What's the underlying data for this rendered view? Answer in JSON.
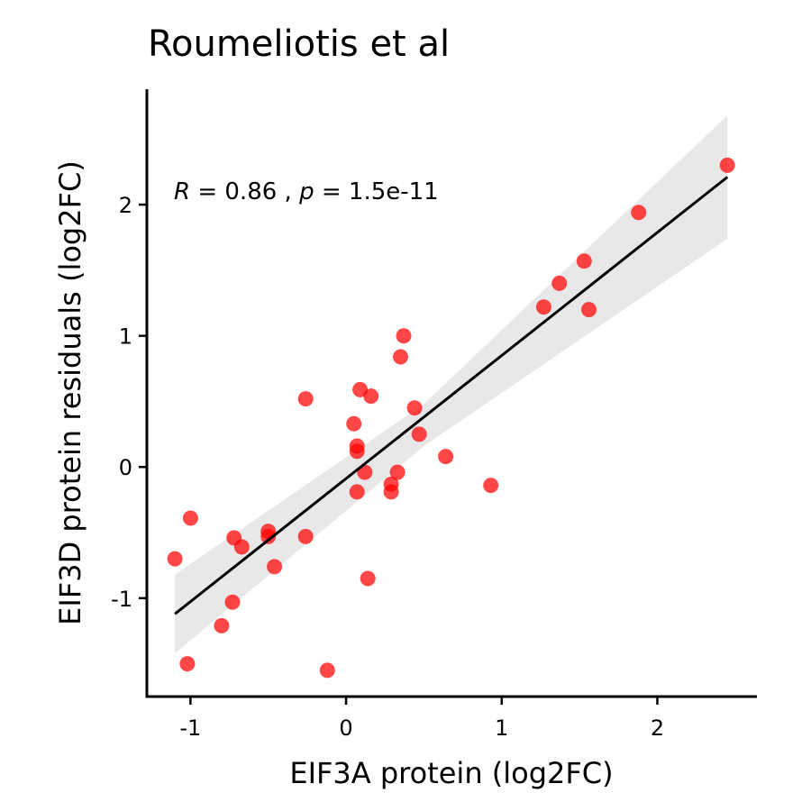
{
  "chart_data": {
    "type": "scatter",
    "title": "Roumeliotis et al",
    "xlabel": "EIF3A protein (log2FC)",
    "ylabel": "EIF3D protein residuals (log2FC)",
    "xlim": [
      -1.28,
      2.64
    ],
    "ylim": [
      -1.75,
      2.88
    ],
    "xticks": [
      -1,
      0,
      1,
      2
    ],
    "yticks": [
      -1,
      0,
      1,
      2
    ],
    "xtick_labels": [
      "-1",
      "0",
      "1",
      "2"
    ],
    "ytick_labels": [
      "-1",
      "0",
      "1",
      "2"
    ],
    "grid": false,
    "legend": "none",
    "point_color": "#ff0000",
    "line_color": "#000000",
    "band_color": "#e6e6e6",
    "annotation": {
      "r_symbol": "R",
      "r_text": " = 0.86 , ",
      "p_symbol": "p",
      "p_text": " = 1.5e-11"
    },
    "points": [
      {
        "x": 2.45,
        "y": 2.3
      },
      {
        "x": 1.88,
        "y": 1.94
      },
      {
        "x": 1.53,
        "y": 1.57
      },
      {
        "x": 1.37,
        "y": 1.4
      },
      {
        "x": 1.27,
        "y": 1.22
      },
      {
        "x": 1.56,
        "y": 1.2
      },
      {
        "x": 0.37,
        "y": 1.0
      },
      {
        "x": 0.35,
        "y": 0.84
      },
      {
        "x": 0.09,
        "y": 0.59
      },
      {
        "x": 0.16,
        "y": 0.54
      },
      {
        "x": -0.26,
        "y": 0.52
      },
      {
        "x": 0.44,
        "y": 0.45
      },
      {
        "x": 0.05,
        "y": 0.33
      },
      {
        "x": 0.47,
        "y": 0.25
      },
      {
        "x": 0.07,
        "y": 0.16
      },
      {
        "x": 0.07,
        "y": 0.12
      },
      {
        "x": 0.64,
        "y": 0.08
      },
      {
        "x": 0.12,
        "y": -0.04
      },
      {
        "x": 0.33,
        "y": -0.04
      },
      {
        "x": 0.29,
        "y": -0.13
      },
      {
        "x": 0.29,
        "y": -0.19
      },
      {
        "x": 0.07,
        "y": -0.19
      },
      {
        "x": 0.93,
        "y": -0.14
      },
      {
        "x": -1.0,
        "y": -0.39
      },
      {
        "x": -1.1,
        "y": -0.7
      },
      {
        "x": -0.72,
        "y": -0.54
      },
      {
        "x": -0.67,
        "y": -0.61
      },
      {
        "x": -0.5,
        "y": -0.49
      },
      {
        "x": -0.5,
        "y": -0.53
      },
      {
        "x": -0.26,
        "y": -0.53
      },
      {
        "x": -0.46,
        "y": -0.76
      },
      {
        "x": 0.14,
        "y": -0.85
      },
      {
        "x": -0.73,
        "y": -1.03
      },
      {
        "x": -0.8,
        "y": -1.21
      },
      {
        "x": -1.02,
        "y": -1.5
      },
      {
        "x": -0.12,
        "y": -1.55
      }
    ],
    "fit_line": {
      "x": [
        -1.1,
        2.45
      ],
      "y": [
        -1.12,
        2.21
      ]
    },
    "confidence_band": {
      "x": [
        -1.1,
        0.5,
        2.45
      ],
      "lower": [
        -1.42,
        0.16,
        1.74
      ],
      "upper": [
        -0.82,
        0.48,
        2.68
      ]
    }
  }
}
